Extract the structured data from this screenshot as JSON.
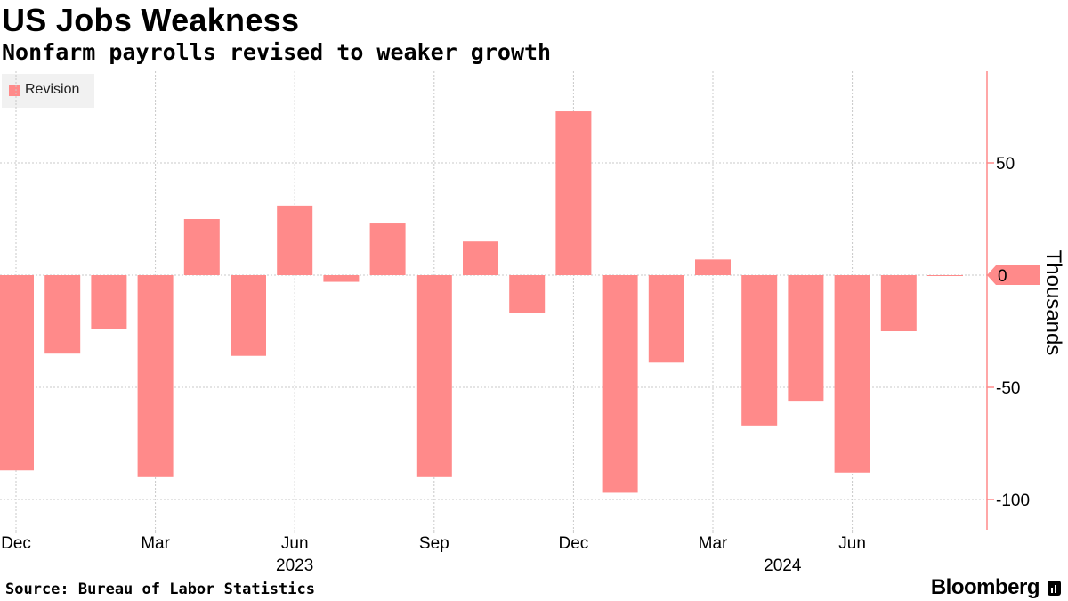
{
  "header": {
    "title": "US Jobs Weakness",
    "subtitle": "Nonfarm payrolls revised to weaker growth"
  },
  "legend": {
    "label": "Revision"
  },
  "footer": {
    "source": "Source: Bureau of Labor Statistics",
    "brand": "Bloomberg"
  },
  "colors": {
    "bar": "#ff8a8a",
    "axis": "#ff8a8a",
    "grid": "#c8c8c8",
    "text": "#000000"
  },
  "chart_data": {
    "type": "bar",
    "title": "US Jobs Weakness",
    "subtitle": "Nonfarm payrolls revised to weaker growth",
    "ylabel": "Thousands",
    "ylim": [
      -112,
      88
    ],
    "yticks": [
      50,
      0,
      -50,
      -100
    ],
    "categories": [
      "Dec 2022",
      "Jan 2023",
      "Feb 2023",
      "Mar 2023",
      "Apr 2023",
      "May 2023",
      "Jun 2023",
      "Jul 2023",
      "Aug 2023",
      "Sep 2023",
      "Oct 2023",
      "Nov 2023",
      "Dec 2023",
      "Jan 2024",
      "Feb 2024",
      "Mar 2024",
      "Apr 2024",
      "May 2024",
      "Jun 2024",
      "Jul 2024",
      "Aug 2024"
    ],
    "series": [
      {
        "name": "Revision",
        "values": [
          -87,
          -35,
          -24,
          -90,
          25,
          -36,
          31,
          -3,
          23,
          -90,
          15,
          -17,
          73,
          -97,
          -39,
          7,
          -67,
          -56,
          -88,
          -25,
          0
        ]
      }
    ],
    "xticks": [
      {
        "index": 0,
        "label": "Dec"
      },
      {
        "index": 3,
        "label": "Mar"
      },
      {
        "index": 6,
        "label": "Jun"
      },
      {
        "index": 9,
        "label": "Sep"
      },
      {
        "index": 12,
        "label": "Dec"
      },
      {
        "index": 15,
        "label": "Mar"
      },
      {
        "index": 18,
        "label": "Jun"
      }
    ],
    "year_labels": [
      {
        "index": 6,
        "label": "2023"
      },
      {
        "index": 16.5,
        "label": "2024"
      }
    ],
    "last_value_label": "0",
    "legend_position": "top-left",
    "grid": true
  }
}
